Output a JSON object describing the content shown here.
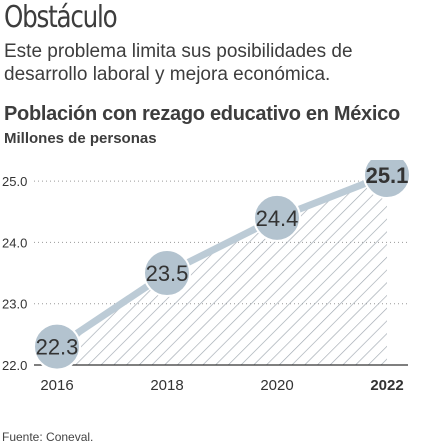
{
  "header": {
    "title": "Obstáculo",
    "subtitle": "Este problema limita sus posibilidades de desarrollo laboral y mejora económica."
  },
  "chart_data": {
    "type": "area",
    "title": "Población con rezago educativo en México",
    "subtitle": "Millones de personas",
    "xlabel": "",
    "ylabel": "",
    "x": [
      "2016",
      "2018",
      "2020",
      "2022"
    ],
    "values": [
      22.3,
      23.5,
      24.4,
      25.1
    ],
    "value_labels": [
      "22.3",
      "23.5",
      "24.4",
      "25.1"
    ],
    "y_ticks": [
      "25.0",
      "24.0",
      "23.0",
      "22.0"
    ],
    "ylim": [
      22.0,
      25.1
    ],
    "grid": true,
    "fill": "diagonal hatch",
    "colors": {
      "line": "#bccbd6",
      "marker": "#b3c3cf",
      "grid": "#9a9a9a",
      "hatch": "#9fa8b0",
      "text": "#333333"
    }
  },
  "footer": {
    "source": "Fuente: Coneval."
  }
}
